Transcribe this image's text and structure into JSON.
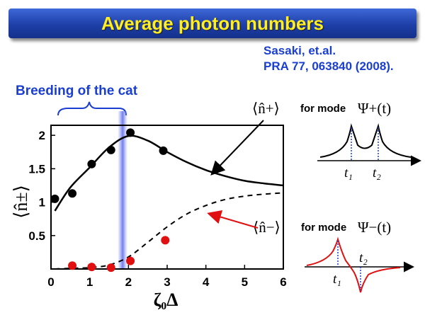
{
  "header": {
    "title": "Average photon numbers"
  },
  "reference": {
    "line1": "Sasaki, et.al.",
    "line2": "PRA 77, 063840 (2008)."
  },
  "annotation": {
    "breeding": "Breeding of the cat"
  },
  "colors": {
    "title_bg": "#1d3fa8",
    "title_text": "#ffee22",
    "ref_text": "#1a3fd0",
    "data_minus": "#e01010",
    "highlight": "#8c96f0"
  },
  "chart_data": {
    "type": "scatter",
    "xlabel": "ζ₀Δ",
    "ylabel": "⟨n̂±⟩",
    "xlim": [
      0,
      6
    ],
    "ylim": [
      0,
      2.15
    ],
    "x_ticks": [
      "0",
      "1",
      "2",
      "3",
      "4",
      "5",
      "6"
    ],
    "y_ticks": [
      "0.5",
      "1",
      "1.5",
      "2"
    ],
    "grid": false,
    "highlight_band_x": 1.85,
    "series": [
      {
        "name": "⟨n̂+⟩ theory",
        "style": "solid",
        "x": [
          0.1,
          0.5,
          1.0,
          1.5,
          2.0,
          2.5,
          3.0,
          3.5,
          4.0,
          4.5,
          5.0,
          5.5,
          6.0
        ],
        "values": [
          0.87,
          1.22,
          1.52,
          1.82,
          1.99,
          1.92,
          1.75,
          1.6,
          1.48,
          1.39,
          1.32,
          1.28,
          1.25
        ]
      },
      {
        "name": "⟨n̂−⟩ theory",
        "style": "dashed",
        "x": [
          0.1,
          0.5,
          1.0,
          1.5,
          2.0,
          2.5,
          3.0,
          3.5,
          4.0,
          4.5,
          5.0,
          5.5,
          6.0
        ],
        "values": [
          0.0,
          0.01,
          0.02,
          0.06,
          0.18,
          0.4,
          0.63,
          0.82,
          0.95,
          1.04,
          1.09,
          1.12,
          1.14
        ]
      },
      {
        "name": "⟨n̂+⟩ data",
        "style": "marker",
        "color": "#000000",
        "x": [
          0.1,
          0.55,
          1.05,
          1.55,
          2.05,
          2.9
        ],
        "values": [
          1.05,
          1.13,
          1.57,
          1.78,
          2.04,
          1.77
        ]
      },
      {
        "name": "⟨n̂−⟩ data",
        "style": "marker",
        "color": "#e01010",
        "x": [
          0.55,
          1.05,
          1.55,
          2.05,
          2.95
        ],
        "values": [
          0.05,
          0.03,
          0.02,
          0.12,
          0.43
        ]
      }
    ],
    "labels": {
      "plus": {
        "math": "⟨n̂+⟩",
        "text": "for mode",
        "mode": "Ψ+(t)"
      },
      "minus": {
        "math": "⟨n̂−⟩",
        "text": "for mode",
        "mode": "Ψ−(t)"
      }
    }
  },
  "insets": {
    "plus": {
      "t1": "t₁",
      "t2": "t₂"
    },
    "minus": {
      "t1": "t₁",
      "t2": "t₂"
    }
  }
}
